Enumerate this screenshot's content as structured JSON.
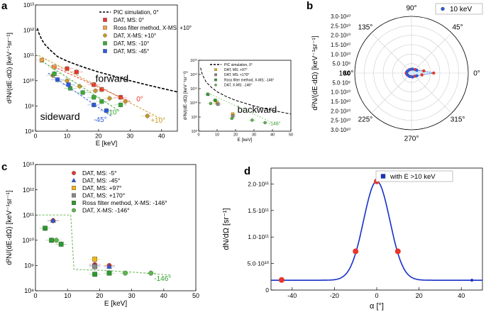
{
  "chart_data": [
    {
      "panel": "a",
      "type": "scatter",
      "xlabel": "E [keV]",
      "ylabel": "d²N/(dE·dΩ) [keV⁻¹sr⁻¹]",
      "xlim": [
        0,
        45
      ],
      "ylim_log10": [
        8,
        13
      ],
      "xticks": [
        "0",
        "10",
        "20",
        "30",
        "40"
      ],
      "yticks": [
        "10⁸",
        "10⁹",
        "10¹⁰",
        "10¹¹",
        "10¹²",
        "10¹³"
      ],
      "legend": [
        {
          "label": "PIC simulation, 0°",
          "color": "#000000",
          "marker": "dash"
        },
        {
          "label": "DAT, MS: 0°",
          "color": "#e8362c",
          "marker": "square"
        },
        {
          "label": "Ross filter method, X-MS: +10°",
          "color": "#f0a04b",
          "marker": "square"
        },
        {
          "label": "DAT, X-MS: +10°",
          "color": "#c89a2a",
          "marker": "circle"
        },
        {
          "label": "DAT, MS: -10°",
          "color": "#3aaa35",
          "marker": "square"
        },
        {
          "label": "DAT, MS: -45°",
          "color": "#2c5bd8",
          "marker": "square"
        }
      ],
      "annotations": [
        "forward",
        "sideward",
        "0°",
        "+10°",
        "-10°",
        "-45°"
      ],
      "pic_curve": [
        [
          0.6,
          1200000000000.0
        ],
        [
          1,
          800000000000.0
        ],
        [
          2,
          420000000000.0
        ],
        [
          3,
          270000000000.0
        ],
        [
          5,
          150000000000.0
        ],
        [
          7,
          90000000000.0
        ],
        [
          10,
          60000000000.0
        ],
        [
          15,
          35000000000.0
        ],
        [
          20,
          22000000000.0
        ],
        [
          25,
          15000000000.0
        ],
        [
          30,
          10000000000.0
        ],
        [
          35,
          7000000000.0
        ],
        [
          40,
          5000000000.0
        ],
        [
          45,
          3600000000.0
        ]
      ],
      "series": [
        {
          "name": "DAT, MS: 0°",
          "color": "#e8362c",
          "points": [
            [
              10,
              30000000000.0
            ],
            [
              13,
              22000000000.0
            ],
            [
              18.5,
              7000000000.0
            ],
            [
              21,
              4500000000.0
            ],
            [
              27,
              2200000000.0
            ]
          ]
        },
        {
          "name": "Ross filter method, X-MS: +10°",
          "color": "#f0a04b",
          "points": [
            [
              2,
              65000000000.0
            ],
            [
              6,
              35000000000.0
            ]
          ]
        },
        {
          "name": "DAT, X-MS: +10°",
          "color": "#c89a2a",
          "points": [
            [
              5.5,
              16000000000.0
            ],
            [
              10,
              10000000000.0
            ],
            [
              14,
              6000000000.0
            ],
            [
              19,
              4000000000.0
            ],
            [
              23.5,
              2000000000.0
            ],
            [
              28.5,
              1500000000.0
            ],
            [
              35.5,
              400000000.0
            ]
          ]
        },
        {
          "name": "DAT, MS: -10°",
          "color": "#3aaa35",
          "points": [
            [
              6,
              19000000000.0
            ],
            [
              11,
              5000000000.0
            ],
            [
              15,
              3400000000.0
            ],
            [
              18.5,
              2200000000.0
            ],
            [
              21,
              1500000000.0
            ],
            [
              27,
              1100000000.0
            ]
          ]
        },
        {
          "name": "DAT, MS: -45°",
          "color": "#2c5bd8",
          "points": [
            [
              7,
              11000000000.0
            ],
            [
              10.5,
              7000000000.0
            ],
            [
              18.5,
              1100000000.0
            ],
            [
              22.5,
              650000000.0
            ]
          ]
        }
      ]
    },
    {
      "panel": "a-inset",
      "type": "scatter",
      "xlabel": "E [keV]",
      "ylabel": "d²N/(dE·dΩ) [keV⁻¹sr⁻¹]",
      "xlim": [
        0,
        50
      ],
      "ylim_log10": [
        8,
        13
      ],
      "xticks": [
        "0",
        "10",
        "20",
        "30",
        "40",
        "50"
      ],
      "yticks": [
        "10⁸",
        "10⁹",
        "10¹⁰",
        "10¹¹",
        "10¹²",
        "10¹³"
      ],
      "legend": [
        {
          "label": "PIC simulation, 0°",
          "color": "#000000",
          "marker": "dash"
        },
        {
          "label": "DAT, MS: +97°",
          "color": "#f2b70f",
          "marker": "square"
        },
        {
          "label": "DAT, MS: +170°",
          "color": "#888888",
          "marker": "square"
        },
        {
          "label": "Ross filter method, X-MS: -146°",
          "color": "#2a9a2a",
          "marker": "square"
        },
        {
          "label": "DAT, X-MS: -146°",
          "color": "#58b848",
          "marker": "circle"
        }
      ],
      "annotations": [
        "backward",
        "-146°"
      ],
      "pic_curve": [
        [
          1,
          3000000000000.0
        ],
        [
          2,
          1000000000000.0
        ],
        [
          4,
          300000000000.0
        ],
        [
          7,
          120000000000.0
        ],
        [
          10,
          60000000000.0
        ],
        [
          15,
          28000000000.0
        ],
        [
          20,
          15000000000.0
        ],
        [
          30,
          6000000000.0
        ],
        [
          40,
          3000000000.0
        ],
        [
          50,
          1600000000.0
        ]
      ],
      "series": [
        {
          "name": "DAT, MS: +97°",
          "color": "#f2b70f",
          "points": [
            [
              10,
              10000000000.0
            ],
            [
              18.5,
              1600000000.0
            ]
          ]
        },
        {
          "name": "DAT, MS: +170°",
          "color": "#888888",
          "points": [
            [
              10.5,
              8000000000.0
            ],
            [
              18.5,
              1200000000.0
            ]
          ]
        },
        {
          "name": "Ross filter method, X-MS: -146°",
          "color": "#2a9a2a",
          "points": [
            [
              5,
              40000000000.0
            ],
            [
              9,
              15000000000.0
            ]
          ]
        },
        {
          "name": "DAT, X-MS: -146°",
          "color": "#58b848",
          "points": [
            [
              6.5,
              9000000000.0
            ],
            [
              18,
              800000000.0
            ],
            [
              29,
              600000000.0
            ],
            [
              36,
              400000000.0
            ]
          ]
        }
      ]
    },
    {
      "panel": "b",
      "type": "polar",
      "ylabel": "d²N/(dE·dΩ) [keV⁻¹sr⁻¹]",
      "angle_labels": [
        "0°",
        "45°",
        "90°",
        "135°",
        "180°",
        "225°",
        "270°",
        "315°"
      ],
      "radial_labels": [
        "3.0·10¹⁰",
        "2.5·10¹⁰",
        "2.0·10¹⁰",
        "1.5·10¹⁰",
        "1.0·10¹⁰",
        "5.0·10⁹",
        "0.0",
        "5.0·10⁹",
        "1.0·10¹⁰",
        "1.5·10¹⁰",
        "2.0·10¹⁰",
        "2.5·10¹⁰",
        "3.0·10¹⁰"
      ],
      "rmax": 32000000000.0,
      "legend": [
        {
          "label": "10 keV",
          "color": "#2c5bd8",
          "marker": "circle"
        }
      ],
      "points": [
        {
          "angle": 0,
          "r": 12500000000.0,
          "color": "#e8362c"
        },
        {
          "angle": 10,
          "r": 7000000000.0,
          "color": "#e8362c"
        },
        {
          "angle": -10,
          "r": 6000000000.0,
          "color": "#e8362c"
        },
        {
          "angle": 45,
          "r": 2800000000.0,
          "color": "#e8362c"
        },
        {
          "angle": -45,
          "r": 2500000000.0,
          "color": "#e8362c"
        },
        {
          "angle": 97,
          "r": 2200000000.0,
          "color": "#e8362c"
        },
        {
          "angle": -97,
          "r": 2000000000.0,
          "color": "#e8362c"
        },
        {
          "angle": 146,
          "r": 2400000000.0,
          "color": "#e8362c"
        },
        {
          "angle": -146,
          "r": 2400000000.0,
          "color": "#e8362c"
        },
        {
          "angle": 170,
          "r": 2800000000.0,
          "color": "#e8362c"
        },
        {
          "angle": -170,
          "r": 2800000000.0,
          "color": "#e8362c"
        },
        {
          "angle": 180,
          "r": 3000000000.0,
          "color": "#e8362c"
        },
        {
          "angle": 120,
          "r": 2200000000.0,
          "color": "#2c5bd8"
        },
        {
          "angle": -120,
          "r": 2200000000.0,
          "color": "#2c5bd8"
        },
        {
          "angle": 75,
          "r": 2300000000.0,
          "color": "#2c5bd8"
        },
        {
          "angle": -75,
          "r": 2300000000.0,
          "color": "#2c5bd8"
        },
        {
          "angle": 28,
          "r": 3400000000.0,
          "color": "#2c5bd8"
        },
        {
          "angle": -28,
          "r": 3400000000.0,
          "color": "#2c5bd8"
        },
        {
          "angle": 160,
          "r": 2600000000.0,
          "color": "#2c5bd8"
        },
        {
          "angle": -160,
          "r": 2600000000.0,
          "color": "#2c5bd8"
        }
      ]
    },
    {
      "panel": "c",
      "type": "scatter",
      "xlabel": "E [keV]",
      "ylabel": "d²N/(dE·dΩ) [keV⁻¹sr⁻¹]",
      "xlim": [
        0,
        50
      ],
      "ylim_log10": [
        8,
        13
      ],
      "xticks": [
        "0",
        "10",
        "20",
        "30",
        "40",
        "50"
      ],
      "yticks": [
        "10⁸",
        "10⁹",
        "10¹⁰",
        "10¹¹",
        "10¹²",
        "10¹³"
      ],
      "legend": [
        {
          "label": "DAT, MS: -5°",
          "color": "#e8362c",
          "marker": "circle"
        },
        {
          "label": "DAT, MS: -45°",
          "color": "#2c5bd8",
          "marker": "triangle"
        },
        {
          "label": "DAT, MS: +97°",
          "color": "#f2b70f",
          "marker": "square"
        },
        {
          "label": "DAT, MS: +170°",
          "color": "#888888",
          "marker": "square"
        },
        {
          "label": "Ross filter method, X-MS: -146°",
          "color": "#2a9a2a",
          "marker": "square"
        },
        {
          "label": "DAT, X-MS: -146°",
          "color": "#58b848",
          "marker": "circle"
        }
      ],
      "annotations": [
        "-146°"
      ],
      "series": [
        {
          "name": "DAT, MS: -5°",
          "color": "#e8362c",
          "points": [
            [
              5.5,
              60000000000.0
            ],
            [
              18.5,
              1100000000.0
            ],
            [
              23,
              1000000000.0
            ]
          ]
        },
        {
          "name": "DAT, MS: -45°",
          "color": "#2c5bd8",
          "points": [
            [
              5.5,
              60000000000.0
            ],
            [
              18.5,
              1000000000.0
            ],
            [
              23,
              900000000.0
            ]
          ]
        },
        {
          "name": "DAT, MS: +97°",
          "color": "#f2b70f",
          "points": [
            [
              18.5,
              1800000000.0
            ]
          ]
        },
        {
          "name": "DAT, MS: +170°",
          "color": "#888888",
          "points": [
            [
              18.5,
              900000000.0
            ]
          ]
        },
        {
          "name": "Ross filter method, X-MS: -146°",
          "color": "#2a9a2a",
          "points": [
            [
              3,
              30000000000.0
            ],
            [
              5,
              10000000000.0
            ],
            [
              8,
              7000000000.0
            ],
            [
              18.5,
              450000000.0
            ],
            [
              23,
              500000000.0
            ]
          ]
        },
        {
          "name": "DAT, X-MS: -146°",
          "color": "#58b848",
          "points": [
            [
              6.5,
              10000000000.0
            ],
            [
              28,
              500000000.0
            ],
            [
              36,
              500000000.0
            ]
          ]
        }
      ],
      "fit_curve": [
        [
          1,
          100000000000.0
        ],
        [
          11,
          100000000000.0
        ],
        [
          12,
          700000000.0
        ],
        [
          20,
          650000000.0
        ],
        [
          30,
          550000000.0
        ],
        [
          42,
          420000000.0
        ]
      ]
    },
    {
      "panel": "d",
      "type": "line",
      "xlabel": "α [°]",
      "ylabel": "dN/dΩ [sr⁻¹]",
      "xlim": [
        -50,
        50
      ],
      "ylim": [
        0,
        230000000000.0
      ],
      "xticks": [
        "-40",
        "-20",
        "0",
        "20",
        "40"
      ],
      "yticks": [
        "0",
        "5.0·10¹⁰",
        "1.0·10¹¹",
        "1.5·10¹¹",
        "2.0·10¹¹"
      ],
      "legend": [
        {
          "label": "with E >10 keV",
          "color": "#1730c8",
          "marker": "square"
        }
      ],
      "curve_baseline": 18500000000.0,
      "curve_peak": 205000000000.0,
      "curve_sigma_deg": 6.2,
      "points": [
        {
          "x": -45,
          "y": 19000000000.0,
          "color": "#e8362c"
        },
        {
          "x": -10,
          "y": 73000000000.0,
          "color": "#e8362c"
        },
        {
          "x": 0,
          "y": 205000000000.0,
          "color": "#e8362c"
        },
        {
          "x": 10,
          "y": 73000000000.0,
          "color": "#e8362c"
        },
        {
          "x": 45,
          "y": 18500000000.0,
          "color": "#1730c8"
        }
      ]
    }
  ],
  "panel_labels": [
    "a",
    "b",
    "c",
    "d"
  ]
}
